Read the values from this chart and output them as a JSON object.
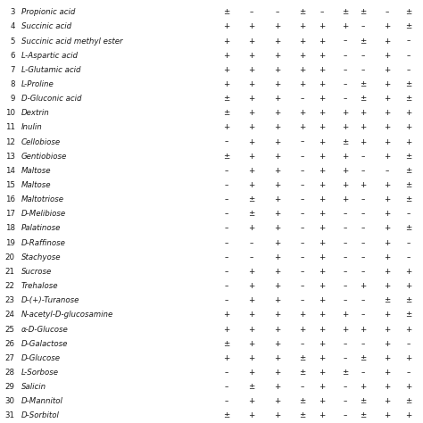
{
  "rows": [
    [
      3,
      "Propionic acid",
      "±",
      "–",
      "–",
      "±",
      "–",
      "±",
      "±",
      "–",
      "±"
    ],
    [
      4,
      "Succinic acid",
      "+",
      "+",
      "+",
      "+",
      "+",
      "+",
      "–",
      "+",
      "±"
    ],
    [
      5,
      "Succinic acid methyl ester",
      "+",
      "+",
      "+",
      "+",
      "+",
      "–",
      "±",
      "+",
      "–"
    ],
    [
      6,
      "L-Aspartic acid",
      "+",
      "+",
      "+",
      "+",
      "+",
      "–",
      "–",
      "+",
      "–"
    ],
    [
      7,
      "L-Glutamic acid",
      "+",
      "+",
      "+",
      "+",
      "+",
      "–",
      "–",
      "+",
      "–"
    ],
    [
      8,
      "L-Proline",
      "+",
      "+",
      "+",
      "+",
      "+",
      "–",
      "±",
      "+",
      "±"
    ],
    [
      9,
      "D-Gluconic acid",
      "±",
      "+",
      "+",
      "–",
      "+",
      "–",
      "±",
      "+",
      "±"
    ],
    [
      10,
      "Dextrin",
      "±",
      "+",
      "+",
      "+",
      "+",
      "+",
      "+",
      "+",
      "+"
    ],
    [
      11,
      "Inulin",
      "+",
      "+",
      "+",
      "+",
      "+",
      "+",
      "+",
      "+",
      "+"
    ],
    [
      12,
      "Cellobiose",
      "–",
      "+",
      "+",
      "–",
      "+",
      "±",
      "+",
      "+",
      "+"
    ],
    [
      13,
      "Gentiobiose",
      "±",
      "+",
      "+",
      "–",
      "+",
      "+",
      "–",
      "+",
      "±"
    ],
    [
      14,
      "Maltose",
      "–",
      "+",
      "+",
      "–",
      "+",
      "+",
      "–",
      "–",
      "±"
    ],
    [
      15,
      "Maltose",
      "–",
      "+",
      "+",
      "–",
      "+",
      "+",
      "+",
      "+",
      "±"
    ],
    [
      16,
      "Maltotriose",
      "–",
      "±",
      "+",
      "–",
      "+",
      "+",
      "–",
      "+",
      "±"
    ],
    [
      17,
      "D-Melibiose",
      "–",
      "±",
      "+",
      "–",
      "+",
      "–",
      "–",
      "+",
      "–"
    ],
    [
      18,
      "Palatinose",
      "–",
      "+",
      "+",
      "–",
      "+",
      "–",
      "–",
      "+",
      "±"
    ],
    [
      19,
      "D-Raffinose",
      "–",
      "–",
      "+",
      "–",
      "+",
      "–",
      "–",
      "+",
      "–"
    ],
    [
      20,
      "Stachyose",
      "–",
      "–",
      "+",
      "–",
      "+",
      "–",
      "–",
      "+",
      "–"
    ],
    [
      21,
      "Sucrose",
      "–",
      "+",
      "+",
      "–",
      "+",
      "–",
      "–",
      "+",
      "+"
    ],
    [
      22,
      "Trehalose",
      "–",
      "+",
      "+",
      "–",
      "+",
      "–",
      "+",
      "+",
      "+"
    ],
    [
      23,
      "D-(+)-Turanose",
      "–",
      "+",
      "+",
      "–",
      "+",
      "–",
      "–",
      "±",
      "±"
    ],
    [
      24,
      "N-acetyl-D-glucosamine",
      "+",
      "+",
      "+",
      "+",
      "+",
      "+",
      "–",
      "+",
      "±"
    ],
    [
      25,
      "α-D-Glucose",
      "+",
      "+",
      "+",
      "+",
      "+",
      "+",
      "+",
      "+",
      "+"
    ],
    [
      26,
      "D-Galactose",
      "±",
      "+",
      "+",
      "–",
      "+",
      "–",
      "–",
      "+",
      "–"
    ],
    [
      27,
      "D-Glucose",
      "+",
      "+",
      "+",
      "±",
      "+",
      "–",
      "±",
      "+",
      "+"
    ],
    [
      28,
      "L-Sorbose",
      "–",
      "+",
      "+",
      "±",
      "+",
      "±",
      "–",
      "+",
      "–"
    ],
    [
      29,
      "Salicin",
      "–",
      "±",
      "+",
      "–",
      "+",
      "–",
      "+",
      "+",
      "+"
    ],
    [
      30,
      "D-Mannitol",
      "–",
      "+",
      "+",
      "±",
      "+",
      "–",
      "±",
      "+",
      "±"
    ],
    [
      31,
      "D-Sorbitol",
      "±",
      "+",
      "+",
      "±",
      "+",
      "–",
      "±",
      "+",
      "+"
    ]
  ],
  "font_size": 6.2,
  "num_fontsize": 6.2,
  "background_color": "#ffffff",
  "text_color": "#1a1a1a"
}
